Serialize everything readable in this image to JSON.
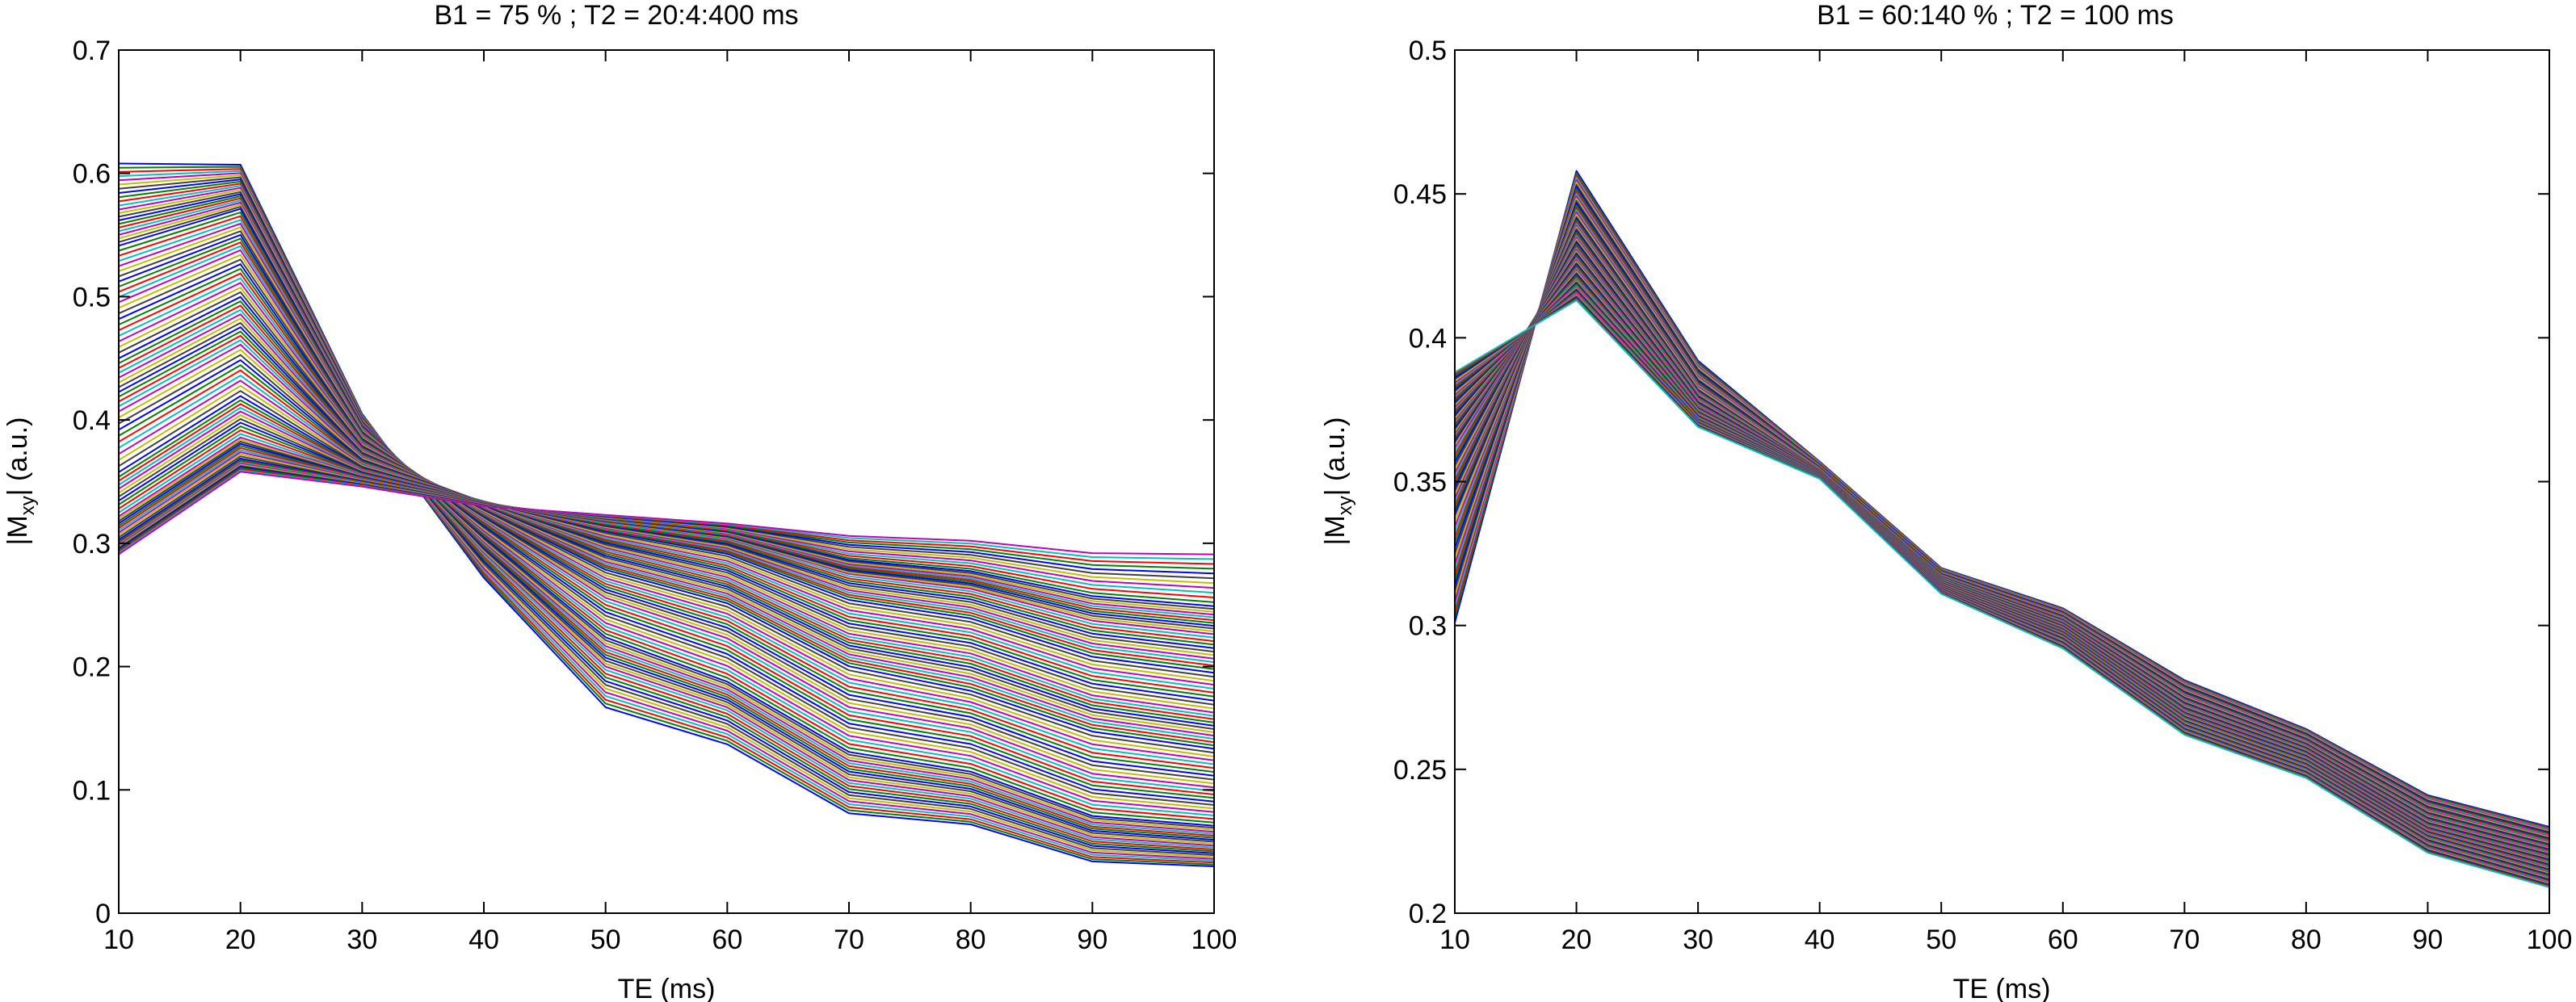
{
  "chart_data": [
    {
      "type": "line",
      "title": "B1 = 75 % ; T2 = 20:4:400 ms",
      "xlabel": "TE (ms)",
      "ylabel_main": "|M",
      "ylabel_sub": "xy",
      "ylabel_tail": "| (a.u.)",
      "x": [
        10,
        20,
        30,
        40,
        50,
        60,
        70,
        80,
        90,
        100
      ],
      "xlim": [
        10,
        100
      ],
      "ylim": [
        0,
        0.7
      ],
      "xticks": [
        "10",
        "20",
        "30",
        "40",
        "50",
        "60",
        "70",
        "80",
        "90",
        "100"
      ],
      "yticks": [
        "0",
        "0.1",
        "0.2",
        "0.3",
        "0.4",
        "0.5",
        "0.6",
        "0.7"
      ],
      "grid": false,
      "family": {
        "param_name": "T2 (ms)",
        "param_start": 20,
        "param_step": 4,
        "param_end": 400,
        "count": 96,
        "representative_series": [
          {
            "name": "T2 = 20 ms",
            "values": [
              0.608,
              0.607,
              0.405,
              0.272,
              0.167,
              0.137,
              0.081,
              0.072,
              0.042,
              0.038
            ]
          },
          {
            "name": "T2 = 24 ms",
            "values": [
              0.572,
              0.589,
              0.4,
              0.292,
              0.199,
              0.166,
              0.107,
              0.094,
              0.061,
              0.054
            ]
          },
          {
            "name": "T2 = 28 ms",
            "values": [
              0.541,
              0.571,
              0.395,
              0.305,
              0.224,
              0.188,
              0.131,
              0.115,
              0.079,
              0.071
            ]
          },
          {
            "name": "T2 = 36 ms",
            "values": [
              0.497,
              0.539,
              0.387,
              0.319,
              0.255,
              0.222,
              0.166,
              0.149,
              0.112,
              0.101
            ]
          },
          {
            "name": "T2 = 48 ms",
            "values": [
              0.449,
              0.499,
              0.378,
              0.328,
              0.279,
              0.252,
              0.201,
              0.181,
              0.148,
              0.134
            ]
          },
          {
            "name": "T2 = 64 ms",
            "values": [
              0.408,
              0.462,
              0.37,
              0.333,
              0.296,
              0.272,
              0.226,
              0.21,
              0.176,
              0.162
            ]
          },
          {
            "name": "T2 = 100 ms",
            "values": [
              0.356,
              0.418,
              0.361,
              0.334,
              0.31,
              0.292,
              0.255,
              0.24,
              0.209,
              0.196
            ]
          },
          {
            "name": "T2 = 160 ms",
            "values": [
              0.322,
              0.386,
              0.355,
              0.333,
              0.317,
              0.304,
              0.275,
              0.263,
              0.237,
              0.226
            ]
          },
          {
            "name": "T2 = 260 ms",
            "values": [
              0.302,
              0.368,
              0.35,
              0.332,
              0.32,
              0.31,
              0.287,
              0.278,
              0.258,
              0.25
            ]
          },
          {
            "name": "T2 = 400 ms",
            "values": [
              0.291,
              0.358,
              0.346,
              0.33,
              0.323,
              0.316,
              0.306,
              0.302,
              0.292,
              0.291
            ]
          }
        ]
      }
    },
    {
      "type": "line",
      "title": "B1 = 60:140 % ; T2 = 100 ms",
      "xlabel": "TE (ms)",
      "ylabel_main": "|M",
      "ylabel_sub": "xy",
      "ylabel_tail": "| (a.u.)",
      "x": [
        10,
        20,
        30,
        40,
        50,
        60,
        70,
        80,
        90,
        100
      ],
      "xlim": [
        10,
        100
      ],
      "ylim": [
        0.2,
        0.5
      ],
      "xticks": [
        "10",
        "20",
        "30",
        "40",
        "50",
        "60",
        "70",
        "80",
        "90",
        "100"
      ],
      "yticks": [
        "0.2",
        "0.25",
        "0.3",
        "0.35",
        "0.4",
        "0.45",
        "0.5"
      ],
      "grid": false,
      "family": {
        "param_name": "B1 (%)",
        "param_start": 60,
        "param_step": 1,
        "param_end": 140,
        "count": 81,
        "representative_series": [
          {
            "name": "B1 = 60 %",
            "values": [
              0.301,
              0.458,
              0.392,
              0.357,
              0.32,
              0.306,
              0.281,
              0.264,
              0.241,
              0.23
            ]
          },
          {
            "name": "B1 = 80 %",
            "values": [
              0.338,
              0.442,
              0.382,
              0.354,
              0.317,
              0.302,
              0.275,
              0.259,
              0.235,
              0.224
            ]
          },
          {
            "name": "B1 = 100 %",
            "values": [
              0.363,
              0.43,
              0.376,
              0.353,
              0.315,
              0.299,
              0.27,
              0.255,
              0.23,
              0.219
            ]
          },
          {
            "name": "B1 = 120 %",
            "values": [
              0.376,
              0.42,
              0.372,
              0.352,
              0.313,
              0.296,
              0.266,
              0.251,
              0.226,
              0.214
            ]
          },
          {
            "name": "B1 = 140 %",
            "values": [
              0.388,
              0.413,
              0.369,
              0.351,
              0.311,
              0.292,
              0.262,
              0.247,
              0.221,
              0.209
            ]
          }
        ]
      }
    }
  ]
}
